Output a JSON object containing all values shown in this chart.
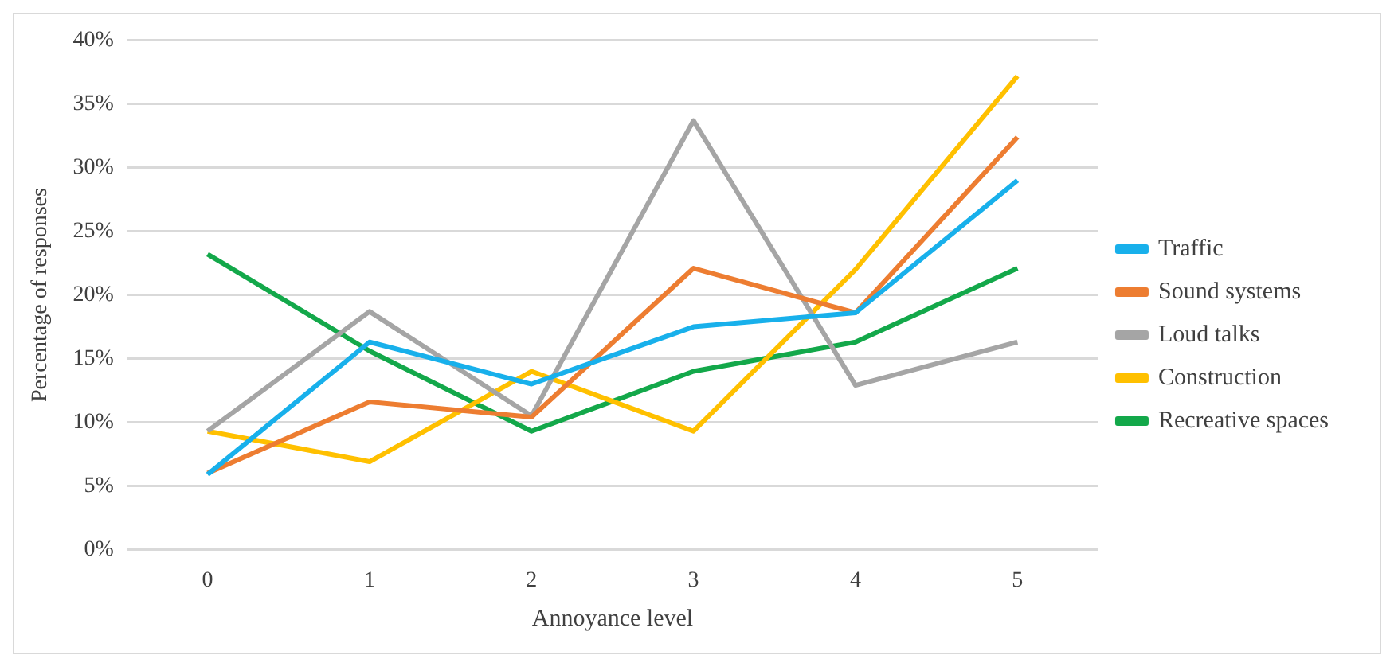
{
  "chart_data": {
    "type": "line",
    "xlabel": "Annoyance level",
    "ylabel": "Percentage of responses",
    "categories": [
      "0",
      "1",
      "2",
      "3",
      "4",
      "5"
    ],
    "series": [
      {
        "name": "Traffic",
        "color": "#18b0eb",
        "values": [
          5.9,
          16.3,
          13,
          17.5,
          18.6,
          29
        ]
      },
      {
        "name": "Sound systems",
        "color": "#ed7d31",
        "values": [
          6,
          11.6,
          10.4,
          22.1,
          18.6,
          32.4
        ]
      },
      {
        "name": "Loud talks",
        "color": "#a5a5a5",
        "values": [
          9.3,
          18.7,
          10.5,
          33.7,
          12.9,
          16.3
        ]
      },
      {
        "name": "Construction",
        "color": "#ffc000",
        "values": [
          9.3,
          6.9,
          14,
          9.3,
          22,
          37.2
        ]
      },
      {
        "name": "Recreative spaces",
        "color": "#13a84a",
        "values": [
          23.2,
          15.6,
          9.3,
          14,
          16.3,
          22.1
        ]
      }
    ],
    "ylim": [
      0,
      40
    ],
    "yticks": [
      {
        "value": 0,
        "label": "0%"
      },
      {
        "value": 5,
        "label": "5%"
      },
      {
        "value": 10,
        "label": "10%"
      },
      {
        "value": 15,
        "label": "15%"
      },
      {
        "value": 20,
        "label": "20%"
      },
      {
        "value": 25,
        "label": "25%"
      },
      {
        "value": 30,
        "label": "30%"
      },
      {
        "value": 35,
        "label": "35%"
      },
      {
        "value": 40,
        "label": "40%"
      }
    ],
    "grid": "y",
    "legend": "right",
    "marker": "none",
    "line_style": "solid"
  }
}
